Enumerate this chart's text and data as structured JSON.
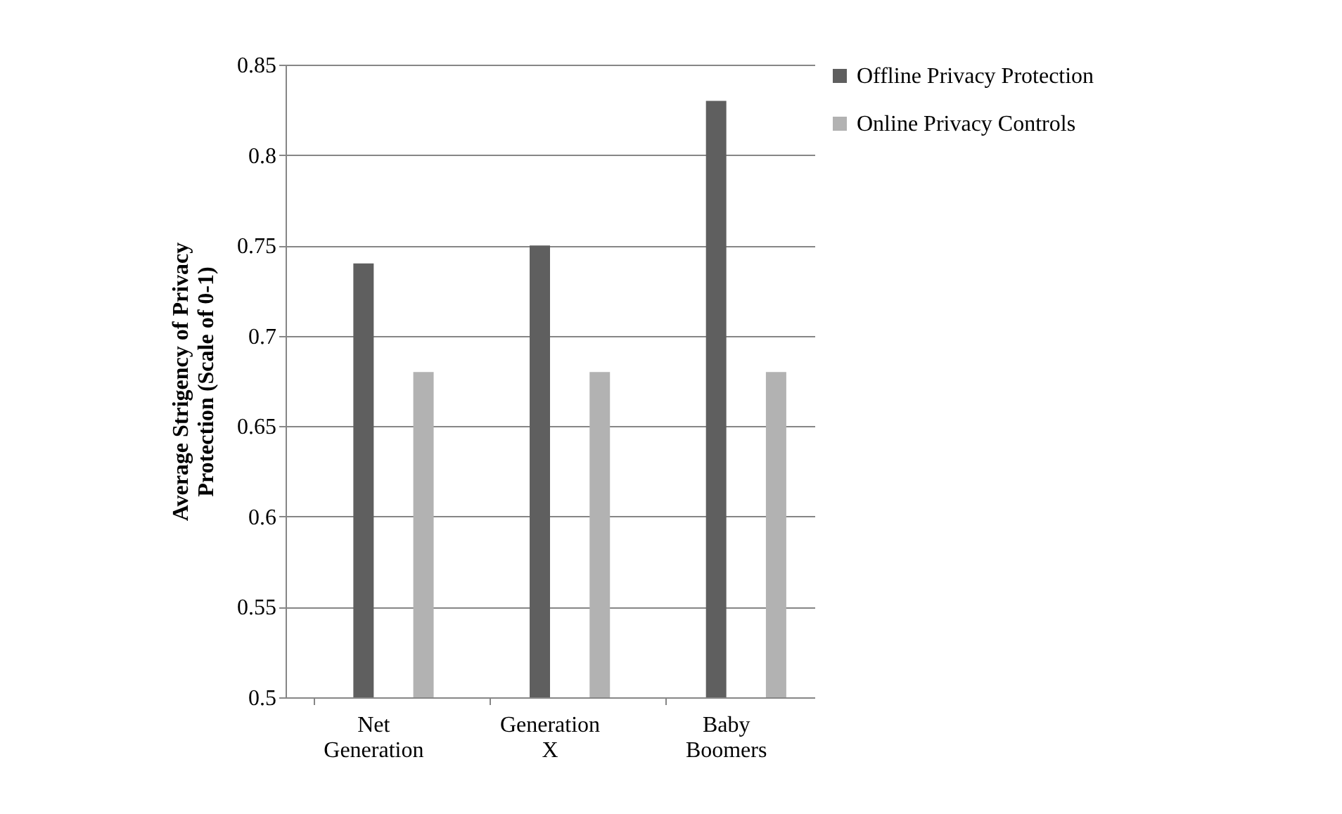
{
  "chart_data": {
    "type": "bar",
    "ylabel": "Average Strigency of Privacy Protection (Scale of 0-1)",
    "categories": [
      "Net Generation",
      "Generation X",
      "Baby Boomers"
    ],
    "series": [
      {
        "name": "Offline Privacy Protection",
        "color": "#5f5f5f",
        "values": [
          0.74,
          0.75,
          0.83
        ]
      },
      {
        "name": "Online Privacy Controls",
        "color": "#b2b2b2",
        "values": [
          0.68,
          0.68,
          0.68
        ]
      }
    ],
    "ylim": [
      0.5,
      0.85
    ],
    "yticks": [
      0.5,
      0.55,
      0.6,
      0.65,
      0.7,
      0.75,
      0.8,
      0.85
    ],
    "grid": "y",
    "legend": "right"
  }
}
